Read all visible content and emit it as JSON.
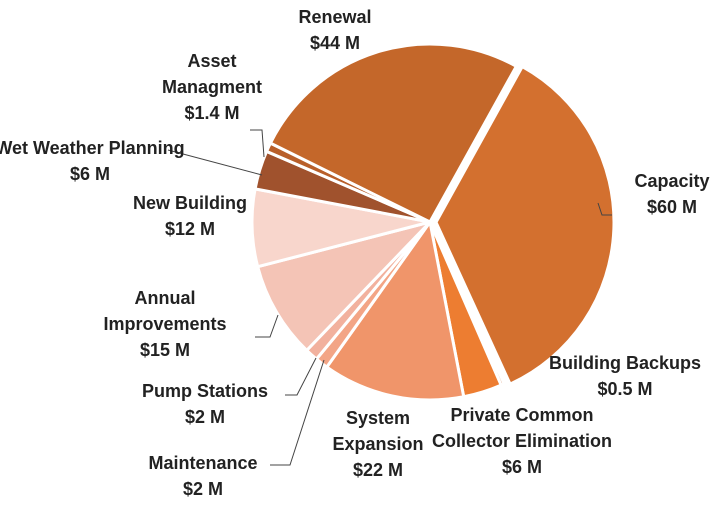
{
  "chart_data": {
    "type": "pie",
    "categories": [
      "Capacity",
      "Building Backups",
      "Private Common Collector Elimination",
      "System Expansion",
      "Maintenance",
      "Pump Stations",
      "Annual Improvements",
      "New Building",
      "Wet Weather Planning",
      "Asset Managment",
      "Renewal"
    ],
    "values": [
      60,
      0.5,
      6,
      22,
      2,
      2,
      15,
      12,
      6,
      1.4,
      44
    ],
    "value_labels": [
      "$60 M",
      "$0.5 M",
      "$6 M",
      "$22 M",
      "$2 M",
      "$2 M",
      "$15 M",
      "$12 M",
      "$6 M",
      "$1.4 M",
      "$44 M"
    ],
    "colors": [
      "#d3702f",
      "#c5632a",
      "#ed7d31",
      "#f0956a",
      "#f3a586",
      "#f2b19e",
      "#f4c4b6",
      "#f8d6cc",
      "#a0522d",
      "#b85f2a",
      "#c4672a"
    ]
  }
}
